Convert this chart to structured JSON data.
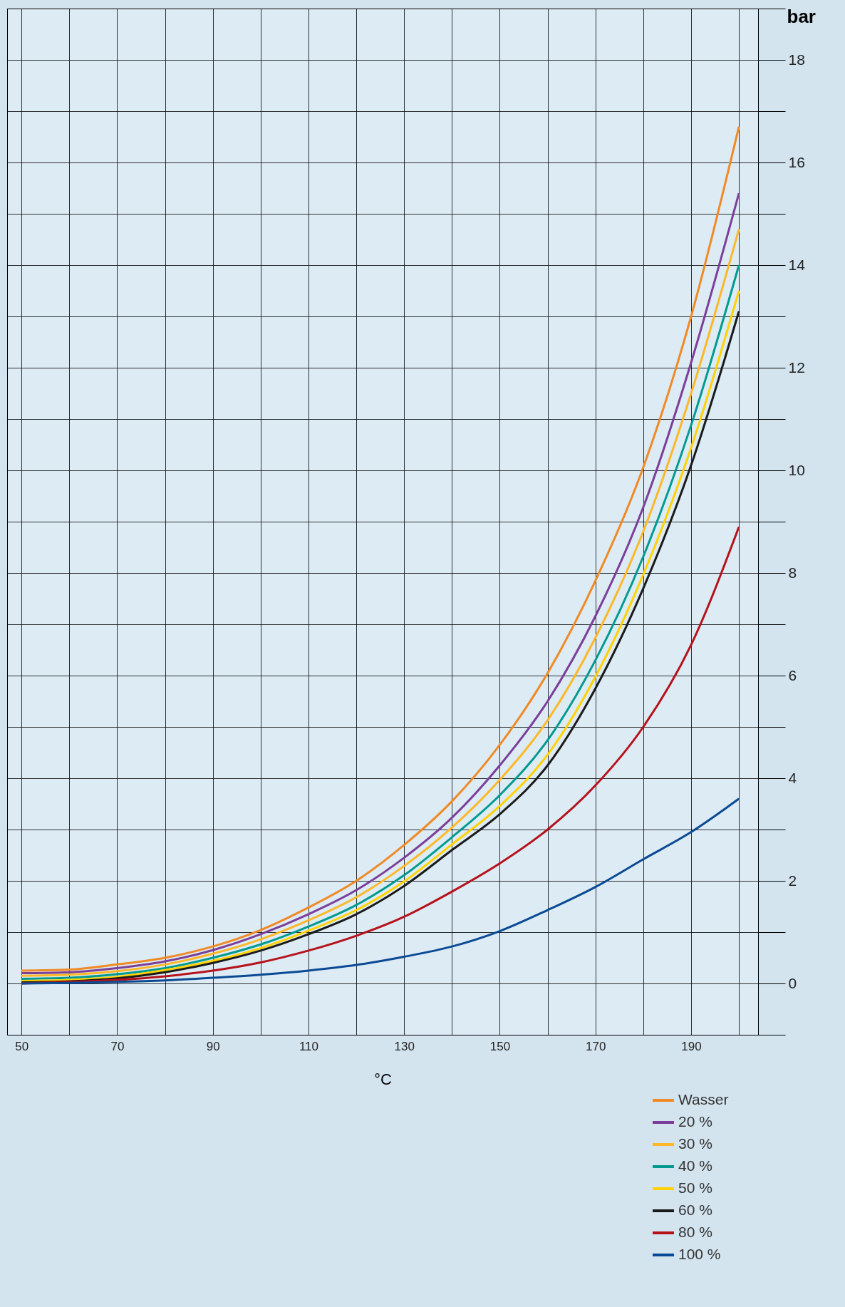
{
  "chart_data": {
    "type": "line",
    "xlabel": "°C",
    "ylabel": "bar",
    "x": [
      50,
      60,
      70,
      80,
      90,
      100,
      110,
      120,
      130,
      140,
      150,
      160,
      170,
      180,
      190,
      200
    ],
    "series": [
      {
        "name": "Wasser",
        "color": "#f08a24",
        "values": [
          0.25,
          0.27,
          0.37,
          0.5,
          0.72,
          1.04,
          1.48,
          2.0,
          2.7,
          3.55,
          4.65,
          6.05,
          7.85,
          10.06,
          13.0,
          16.7
        ]
      },
      {
        "name": "20 %",
        "color": "#7b3f98",
        "values": [
          0.2,
          0.22,
          0.3,
          0.43,
          0.65,
          0.96,
          1.35,
          1.82,
          2.45,
          3.23,
          4.25,
          5.5,
          7.16,
          9.28,
          12.1,
          15.4
        ]
      },
      {
        "name": "30 %",
        "color": "#fdb827",
        "values": [
          0.15,
          0.17,
          0.24,
          0.37,
          0.58,
          0.86,
          1.23,
          1.68,
          2.29,
          3.04,
          3.97,
          5.13,
          6.74,
          8.81,
          11.5,
          14.7
        ]
      },
      {
        "name": "40 %",
        "color": "#009a8e",
        "values": [
          0.09,
          0.11,
          0.18,
          0.3,
          0.5,
          0.76,
          1.11,
          1.53,
          2.11,
          2.85,
          3.67,
          4.74,
          6.3,
          8.32,
          10.88,
          14.0
        ]
      },
      {
        "name": "50 %",
        "color": "#ffd200",
        "values": [
          0.05,
          0.07,
          0.13,
          0.26,
          0.44,
          0.69,
          1.03,
          1.43,
          1.99,
          2.71,
          3.46,
          4.46,
          5.98,
          7.97,
          10.44,
          13.5
        ]
      },
      {
        "name": "60 %",
        "color": "#1a1a1a",
        "values": [
          0.02,
          0.04,
          0.1,
          0.22,
          0.4,
          0.64,
          0.96,
          1.35,
          1.9,
          2.6,
          3.3,
          4.25,
          5.75,
          7.7,
          10.1,
          13.1
        ]
      },
      {
        "name": "80 %",
        "color": "#b5121b",
        "values": [
          0.0,
          0.03,
          0.07,
          0.14,
          0.25,
          0.41,
          0.64,
          0.93,
          1.3,
          1.79,
          2.34,
          3.0,
          3.86,
          5.0,
          6.6,
          8.9
        ]
      },
      {
        "name": "100 %",
        "color": "#0a4a94",
        "values": [
          0.0,
          0.01,
          0.03,
          0.06,
          0.11,
          0.17,
          0.25,
          0.36,
          0.52,
          0.72,
          1.02,
          1.43,
          1.88,
          2.42,
          2.95,
          3.6
        ]
      }
    ],
    "xlim": [
      47,
      204
    ],
    "xticks": [
      50,
      {
        "value": 60,
        "label": null
      },
      70,
      {
        "value": 80,
        "label": null
      },
      90,
      {
        "value": 100,
        "label": null
      },
      110,
      {
        "value": 120,
        "label": null
      },
      130,
      {
        "value": 140,
        "label": null
      },
      150,
      {
        "value": 160,
        "label": null
      },
      170,
      {
        "value": 180,
        "label": null
      },
      190,
      {
        "value": 200,
        "label": null
      }
    ],
    "ylim": [
      -1,
      19
    ],
    "yticks": [
      {
        "value": -1,
        "label": null
      },
      0,
      {
        "value": 1,
        "label": null
      },
      2,
      {
        "value": 3,
        "label": null
      },
      4,
      {
        "value": 5,
        "label": null
      },
      6,
      {
        "value": 7,
        "label": null
      },
      8,
      {
        "value": 9,
        "label": null
      },
      10,
      {
        "value": 11,
        "label": null
      },
      12,
      {
        "value": 13,
        "label": null
      },
      14,
      {
        "value": 15,
        "label": null
      },
      16,
      {
        "value": 17,
        "label": null
      },
      18,
      {
        "value": 19,
        "label": null
      }
    ],
    "grid": true,
    "legend": "bottom right",
    "marker": "none",
    "line_style": "solid"
  }
}
